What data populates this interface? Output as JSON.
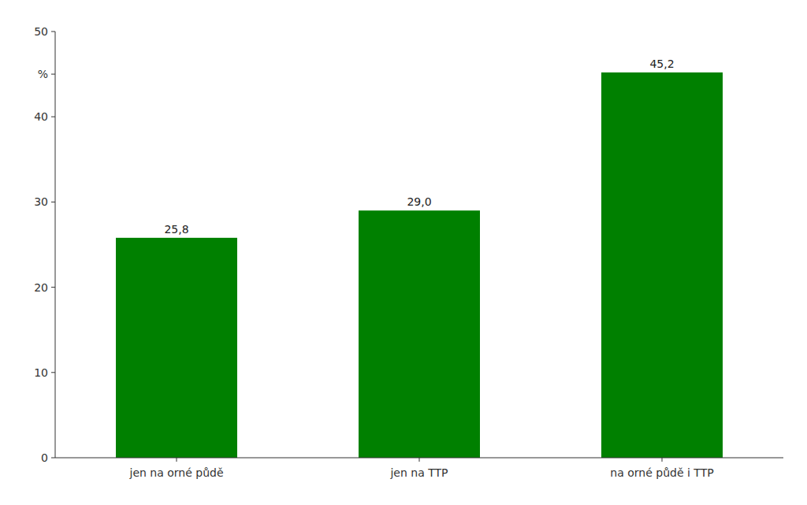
{
  "chart_data": {
    "type": "bar",
    "categories": [
      "jen na orné půdě",
      "jen na TTP",
      "na orné půdě i TTP"
    ],
    "values": [
      25.8,
      29.0,
      45.2
    ],
    "value_labels": [
      "25,8",
      "29,0",
      "45,2"
    ],
    "color": "#008000",
    "ylim": [
      0,
      50
    ],
    "yticks": [
      0,
      10,
      20,
      30,
      40,
      {
        "value": 45,
        "label": "%"
      },
      50
    ],
    "grid": false,
    "data_labels": true
  }
}
